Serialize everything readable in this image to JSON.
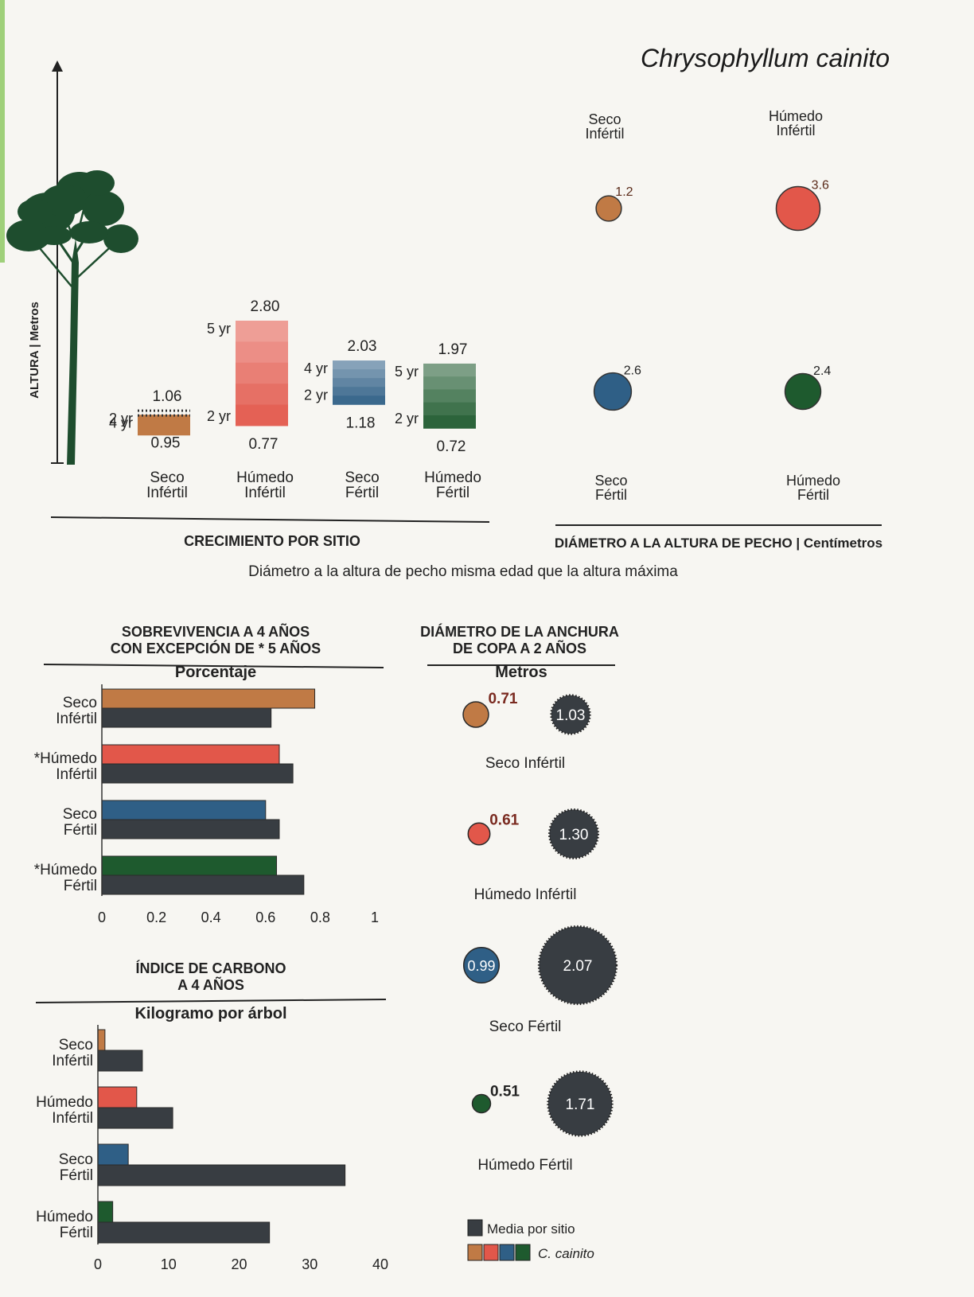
{
  "species": "Chrysophyllum cainito",
  "height_axis_label": "ALTURA | Metros",
  "footnote": "Diámetro a la altura de pecho misma edad que la altura máxima",
  "colors": {
    "seco_infertil": "#c07a45",
    "humedo_infertil": "#e2574a",
    "seco_fertil": "#2f5f86",
    "humedo_fertil": "#1e5a2e",
    "media": "#383d42",
    "tree": "#1e4d2e"
  },
  "chart_data": [
    {
      "type": "bar",
      "title": "CRECIMIENTO POR SITIO",
      "categories": [
        "Seco\nInfértil",
        "Húmedo\nInfértil",
        "Seco\nFértil",
        "Húmedo\nFértil"
      ],
      "series": [
        {
          "name": "",
          "values": [
            0.95,
            0.77,
            1.18,
            0.72
          ],
          "age_labels": [
            "4 yr",
            "2 yr",
            "2 yr",
            "2 yr"
          ]
        },
        {
          "name": "",
          "values": [
            1.06,
            2.8,
            2.03,
            1.97
          ],
          "age_labels": [
            "2 yr",
            "5 yr",
            "4 yr",
            "5 yr"
          ]
        }
      ],
      "ylabel": "ALTURA | Metros",
      "ylim": [
        0,
        5.5
      ]
    },
    {
      "type": "scatter",
      "title": "DIÁMETRO A LA ALTURA DE PECHO | Centímetros",
      "categories": [
        "Seco\nInfértil",
        "Húmedo\nInfértil",
        "Seco\nFértil",
        "Húmedo\nFértil"
      ],
      "values": [
        1.2,
        3.6,
        2.6,
        2.4
      ]
    },
    {
      "type": "bar",
      "title": "SOBREVIVENCIA A 4 AÑOS\nCON EXCEPCIÓN DE * 5 AÑOS",
      "subtitle": "Porcentaje",
      "orientation": "horizontal",
      "categories": [
        "Seco\nInfértil",
        "*Húmedo\nInfértil",
        "Seco\nFértil",
        "*Húmedo\nFértil"
      ],
      "series": [
        {
          "name": "C. cainito",
          "values": [
            0.78,
            0.65,
            0.6,
            0.64
          ]
        },
        {
          "name": "Media por sitio",
          "values": [
            0.62,
            0.7,
            0.65,
            0.74
          ]
        }
      ],
      "xlim": [
        0,
        1
      ],
      "xticks": [
        "0",
        "0.2",
        "0.4",
        "0.6",
        "0.8",
        "1"
      ]
    },
    {
      "type": "bar",
      "title": "ÍNDICE DE CARBONO\nA 4 AÑOS",
      "subtitle": "Kilogramo por árbol",
      "orientation": "horizontal",
      "categories": [
        "Seco\nInfértil",
        "Húmedo\nInfértil",
        "Seco\nFértil",
        "Húmedo\nFértil"
      ],
      "series": [
        {
          "name": "C. cainito",
          "values": [
            1.0,
            5.5,
            4.3,
            2.1
          ]
        },
        {
          "name": "Media por sitio",
          "values": [
            6.3,
            10.6,
            35.0,
            24.3
          ]
        }
      ],
      "xlim": [
        0,
        40
      ],
      "xticks": [
        "0",
        "10",
        "20",
        "30",
        "40"
      ]
    },
    {
      "type": "scatter",
      "title": "DIÁMETRO DE LA ANCHURA\nDE COPA A 2 AÑOS",
      "subtitle": "Metros",
      "categories": [
        "Seco Infértil",
        "Húmedo Infértil",
        "Seco Fértil",
        "Húmedo Fértil"
      ],
      "series": [
        {
          "name": "C. cainito",
          "values": [
            0.71,
            0.61,
            0.99,
            0.51
          ]
        },
        {
          "name": "Media por sitio",
          "values": [
            1.03,
            1.3,
            2.07,
            1.71
          ]
        }
      ]
    }
  ],
  "legend": {
    "items": [
      {
        "label": "Media por sitio"
      },
      {
        "label": "C. cainito"
      }
    ],
    "position": "bottom-right"
  }
}
